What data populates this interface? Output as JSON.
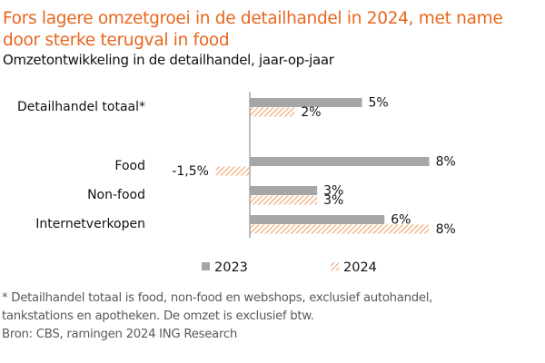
{
  "header": {
    "title": "Fors lagere omzetgroei in de detailhandel in 2024, met name door sterke terugval in food",
    "subtitle": "Omzetontwikkeling in de detailhandel, jaar-op-jaar"
  },
  "footnote": {
    "line1": "* Detailhandel totaal is food, non-food en webshops, exclusief autohandel,",
    "line2": "tankstations en apotheken. De omzet is exclusief btw.",
    "line3": "Bron: CBS, ramingen 2024 ING Research"
  },
  "colors": {
    "title": "#e8661c",
    "series_2023": "#a6a6a6",
    "series_2024": "#f4a872",
    "axis": "#a6a6a6"
  },
  "chart_data": {
    "type": "bar",
    "orientation": "horizontal",
    "title": "Fors lagere omzetgroei in de detailhandel in 2024, met name door sterke terugval in food",
    "subtitle": "Omzetontwikkeling in de detailhandel, jaar-op-jaar",
    "xlabel": "",
    "ylabel": "",
    "xlim": [
      -1.5,
      8
    ],
    "grid": false,
    "legend": "bottom",
    "categories": [
      "Detailhandel totaal*",
      "Food",
      "Non-food",
      "Internetverkopen"
    ],
    "series": [
      {
        "name": "2023",
        "pattern": "solid",
        "values": [
          5,
          8,
          3,
          6
        ],
        "labels": [
          "5%",
          "8%",
          "3%",
          "6%"
        ]
      },
      {
        "name": "2024",
        "pattern": "hatched",
        "values": [
          2,
          -1.5,
          3,
          8
        ],
        "labels": [
          "2%",
          "-1,5%",
          "3%",
          "8%"
        ]
      }
    ]
  }
}
